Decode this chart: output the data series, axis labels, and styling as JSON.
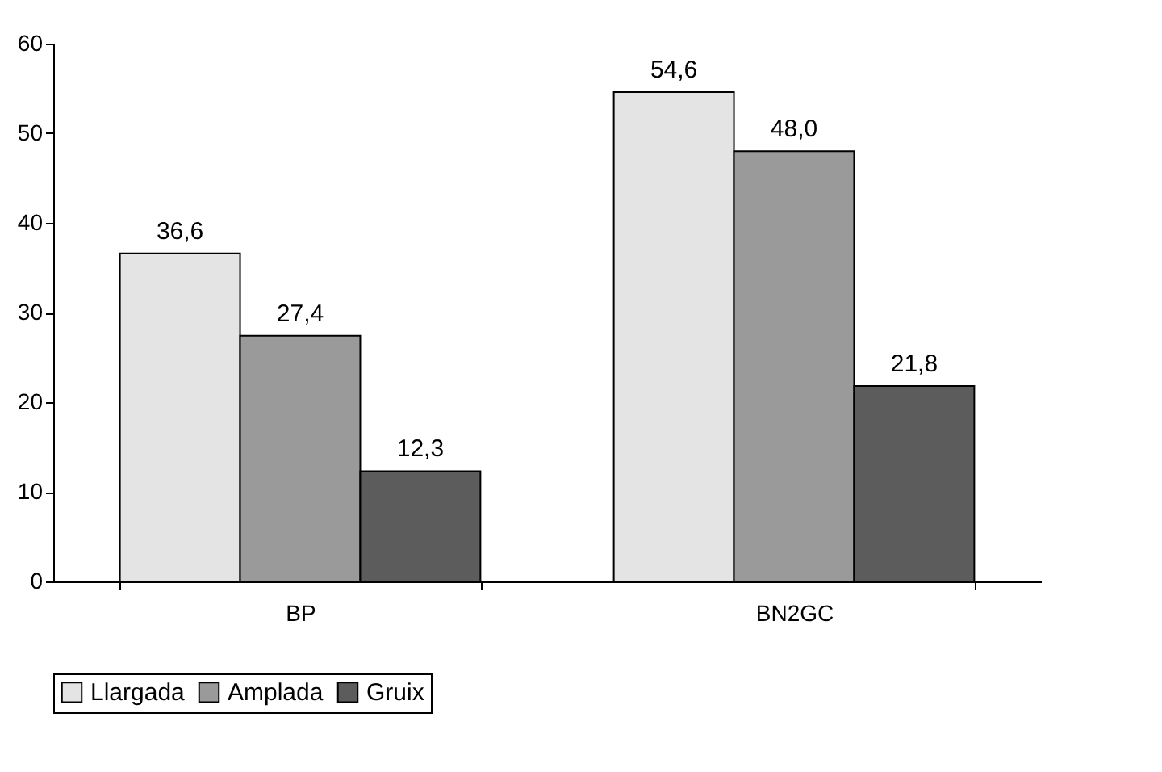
{
  "chart_data": {
    "type": "bar",
    "categories": [
      "BP",
      "BN2GC"
    ],
    "series": [
      {
        "name": "Llargada",
        "color": "#e4e4e4",
        "values": [
          36.6,
          54.6
        ],
        "value_labels": [
          "36,6",
          "54,6"
        ]
      },
      {
        "name": "Amplada",
        "color": "#9a9a9a",
        "values": [
          27.4,
          48.0
        ],
        "value_labels": [
          "27,4",
          "48,0"
        ]
      },
      {
        "name": "Gruix",
        "color": "#5c5c5c",
        "values": [
          12.3,
          21.8
        ],
        "value_labels": [
          "12,3",
          "21,8"
        ]
      }
    ],
    "ylim": [
      0,
      60
    ],
    "yticks": [
      0,
      10,
      20,
      30,
      40,
      50,
      60
    ],
    "grid": false,
    "legend": "bottom"
  }
}
